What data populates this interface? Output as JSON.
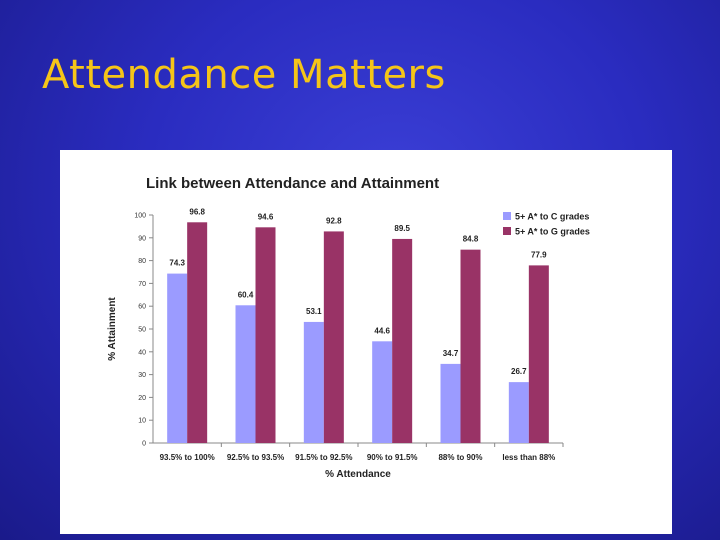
{
  "slide": {
    "title": "Attendance Matters"
  },
  "colors": {
    "series1": "#9b9bff",
    "series2": "#993366",
    "title": "#f5c518"
  },
  "chart_data": {
    "type": "bar",
    "title": "Link between Attendance and Attainment",
    "xlabel": "% Attendance",
    "ylabel": "% Attainment",
    "ylim": [
      0,
      100
    ],
    "yticks": [
      0,
      10,
      20,
      30,
      40,
      50,
      60,
      70,
      80,
      90,
      100
    ],
    "categories": [
      "93.5% to 100%",
      "92.5% to 93.5%",
      "91.5% to 92.5%",
      "90% to 91.5%",
      "88% to 90%",
      "less than 88%"
    ],
    "series": [
      {
        "name": "5+ A* to C grades",
        "values": [
          74.3,
          60.4,
          53.1,
          44.6,
          34.7,
          26.7
        ]
      },
      {
        "name": "5+ A* to G grades",
        "values": [
          96.8,
          94.6,
          92.8,
          89.5,
          84.8,
          77.9
        ]
      }
    ],
    "legend": "top-right",
    "grid": false
  }
}
